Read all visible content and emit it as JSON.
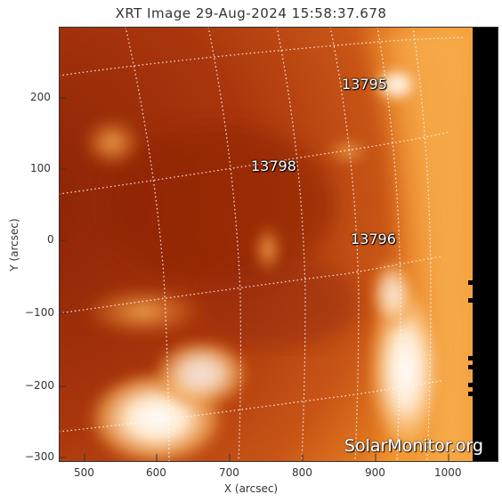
{
  "title": "XRT Image 29-Aug-2024 15:58:37.678",
  "xaxis": {
    "label": "X (arcsec)",
    "ticks": [
      "500",
      "600",
      "700",
      "800",
      "900",
      "1000"
    ]
  },
  "yaxis": {
    "label": "Y (arcsec)",
    "ticks": [
      "200",
      "100",
      "0",
      "−100",
      "−200",
      "−300"
    ]
  },
  "regions": [
    {
      "id": "13795",
      "label": "13795"
    },
    {
      "id": "13798",
      "label": "13798"
    },
    {
      "id": "13796",
      "label": "13796"
    }
  ],
  "watermark": "SolarMonitor.org",
  "colors": {
    "disk_dark": "#9a2a08",
    "disk_mid": "#c24a12",
    "limb_bright": "#f28a2a",
    "hot": "#fff4e6",
    "offdisk": "#000000"
  }
}
